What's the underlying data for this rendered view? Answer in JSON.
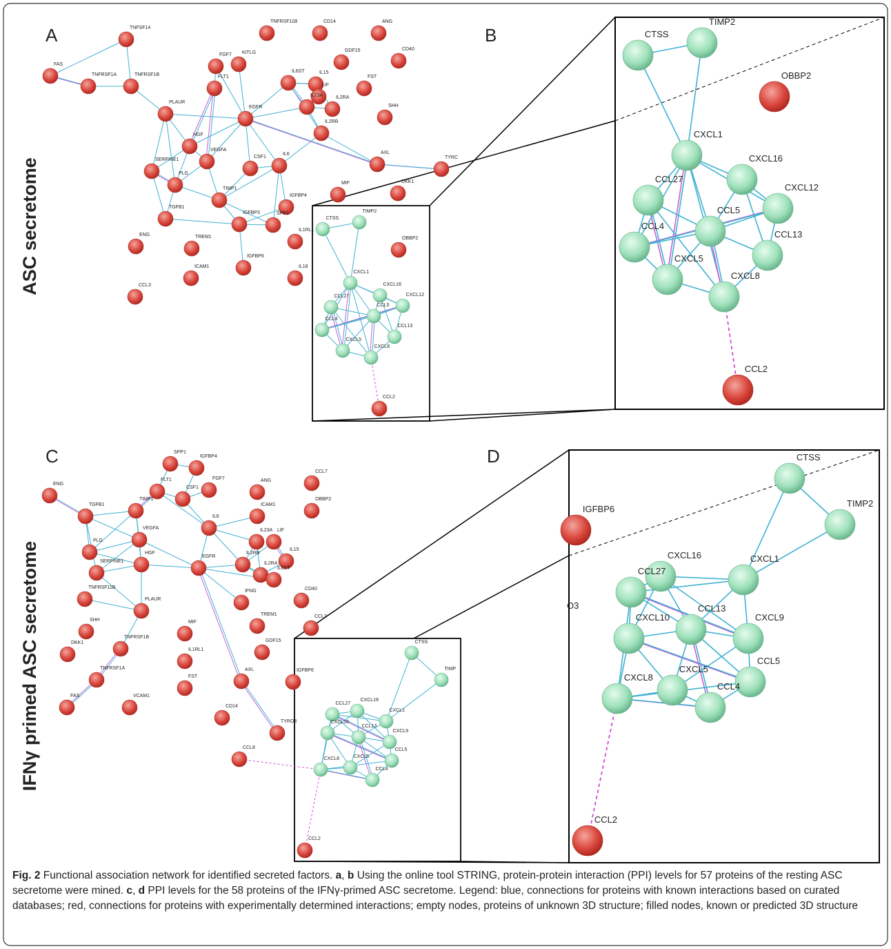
{
  "panels": [
    {
      "letter": "A",
      "nodes": [
        "TNFSF14",
        "FAS",
        "TNFRSF1A",
        "TNFRSF1B",
        "TNFRSF11B",
        "CD14",
        "ANG",
        "GDF15",
        "CD40",
        "FGF7",
        "KITLG",
        "IL6ST",
        "IL15",
        "LIF",
        "FST",
        "IL23A",
        "IL2RA",
        "IL2RB",
        "SHH",
        "FLT1",
        "PLAUR",
        "EGFR",
        "HGF",
        "VEGFA",
        "SERPINE1",
        "PLG",
        "CSF1",
        "IL6",
        "AXL",
        "TYRC",
        "MIF",
        "DKK1",
        "TIMP1",
        "TGFB1",
        "IGFBP4",
        "IGFBP3",
        "SPP1",
        "ENG",
        "TREM1",
        "IL1RL1",
        "OBBP2",
        "IGFBP6",
        "ICAM1",
        "IL18",
        "CCL3",
        "CTSS",
        "TIMP2",
        "CXCL1",
        "CXCL16",
        "CCL27",
        "CXCL12",
        "CCL5",
        "CCL4",
        "CCL13",
        "CXCL5",
        "CXCL8",
        "CCL2"
      ]
    },
    {
      "letter": "B",
      "nodes": [
        "CTSS",
        "TIMP2",
        "CXCL1",
        "CXCL16",
        "CCL27",
        "CXCL12",
        "CCL5",
        "CCL4",
        "CCL13",
        "CXCL5",
        "CXCL8",
        "CCL2",
        "OBBP2"
      ]
    },
    {
      "letter": "C",
      "nodes": [
        "ENG",
        "TGFB1",
        "SPP1",
        "IGFBP4",
        "FLT1",
        "TIMP1",
        "CSF1",
        "FGF7",
        "ANG",
        "CCL7",
        "OBBP2",
        "ICAM1",
        "IL6",
        "IL23A",
        "LIF",
        "IL2RB",
        "IL15",
        "IL2RA",
        "IL6ST",
        "PLG",
        "VEGFA",
        "SERPINE1",
        "HGF",
        "EGFR",
        "IFNG",
        "CD40",
        "TNFRSF11B",
        "PLAUR",
        "TREM1",
        "CCL3",
        "SHH",
        "MIF",
        "DKK1",
        "TNFRSF1B",
        "IL1RL1",
        "GDF15",
        "TNFRSF1A",
        "AXL",
        "IGFBP6",
        "FST",
        "FAS",
        "VCAM1",
        "CD14",
        "TYRO3",
        "CCL8",
        "CTSS",
        "TIMP",
        "CXCL1",
        "CXCL16",
        "CCL27",
        "CXCL10",
        "CCL13",
        "CXCL9",
        "CCL5",
        "CXCL8",
        "CXCL5",
        "CCL4",
        "CCL2"
      ]
    },
    {
      "letter": "D",
      "nodes": [
        "CTSS",
        "TIMP2",
        "CXCL1",
        "CXCL16",
        "CCL27",
        "CXCL10",
        "CCL13",
        "CXCL9",
        "CCL5",
        "CXCL8",
        "CXCL5",
        "CCL4",
        "CCL2",
        "IGFBP6",
        "O3"
      ]
    }
  ],
  "side_labels": [
    "ASC secretome",
    "IFNγ primed ASC secretome"
  ],
  "caption": [
    "Fig. 2",
    " Functional association network for identified secreted factors. ",
    "a",
    ", ",
    "b",
    " Using the online tool STRING, protein-protein interaction (PPI) levels for 57 proteins of the resting ASC secretome were mined. ",
    "c",
    ", ",
    "d",
    " PPI levels for the 58 proteins of the IFNγ-primed ASC secretome. Legend: blue, connections for proteins with known interactions based on curated databases; red, connections for proteins with experimentally determined interactions; empty nodes, proteins of unknown 3D structure; filled nodes, known or predicted 3D structure"
  ]
}
